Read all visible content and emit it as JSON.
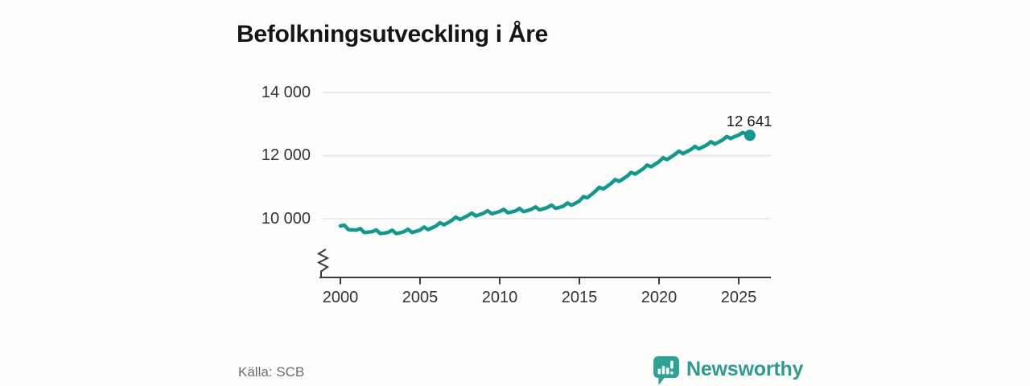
{
  "colors": {
    "accent_teal": "#0f9a8d",
    "brand_teal": "#2d9b8f",
    "grid": "#e3e3e3",
    "axis": "#3a3a3a",
    "title_text": "#151515",
    "muted_text": "#6e6e6e"
  },
  "footer": {
    "source_label": "Källa: SCB",
    "brand_name": "Newsworthy"
  },
  "chart_data": {
    "type": "line",
    "title": "Befolkningsutveckling i Åre",
    "grid": "horizontal",
    "legend": false,
    "line_color": "#0f9a8d",
    "y_axis": {
      "has_axis_break": true,
      "ticks": [
        {
          "value": 14000,
          "label": "14 000"
        },
        {
          "value": 12000,
          "label": "12 000"
        },
        {
          "value": 10000,
          "label": "10 000"
        }
      ]
    },
    "x_axis": {
      "ticks": [
        "2000",
        "2005",
        "2010",
        "2015",
        "2020",
        "2025"
      ]
    },
    "end_point": {
      "x": 2025.7,
      "value": 12641,
      "label": "12 641"
    },
    "series": [
      {
        "points": [
          [
            2000.0,
            9770
          ],
          [
            2000.25,
            9800
          ],
          [
            2000.5,
            9655
          ],
          [
            2000.75,
            9645
          ],
          [
            2001.0,
            9640
          ],
          [
            2001.25,
            9690
          ],
          [
            2001.5,
            9565
          ],
          [
            2001.75,
            9575
          ],
          [
            2002.0,
            9590
          ],
          [
            2002.25,
            9645
          ],
          [
            2002.5,
            9530
          ],
          [
            2002.75,
            9545
          ],
          [
            2003.0,
            9570
          ],
          [
            2003.25,
            9635
          ],
          [
            2003.5,
            9530
          ],
          [
            2003.75,
            9555
          ],
          [
            2004.0,
            9590
          ],
          [
            2004.25,
            9665
          ],
          [
            2004.5,
            9565
          ],
          [
            2004.75,
            9600
          ],
          [
            2005.0,
            9640
          ],
          [
            2005.25,
            9735
          ],
          [
            2005.5,
            9655
          ],
          [
            2005.75,
            9710
          ],
          [
            2006.0,
            9770
          ],
          [
            2006.25,
            9875
          ],
          [
            2006.5,
            9810
          ],
          [
            2006.75,
            9875
          ],
          [
            2007.0,
            9950
          ],
          [
            2007.25,
            10050
          ],
          [
            2007.5,
            9975
          ],
          [
            2007.75,
            10035
          ],
          [
            2008.0,
            10100
          ],
          [
            2008.25,
            10180
          ],
          [
            2008.5,
            10090
          ],
          [
            2008.75,
            10130
          ],
          [
            2009.0,
            10180
          ],
          [
            2009.25,
            10255
          ],
          [
            2009.5,
            10155
          ],
          [
            2009.75,
            10190
          ],
          [
            2010.0,
            10230
          ],
          [
            2010.25,
            10295
          ],
          [
            2010.5,
            10190
          ],
          [
            2010.75,
            10215
          ],
          [
            2011.0,
            10250
          ],
          [
            2011.25,
            10325
          ],
          [
            2011.5,
            10225
          ],
          [
            2011.75,
            10260
          ],
          [
            2012.0,
            10300
          ],
          [
            2012.25,
            10375
          ],
          [
            2012.5,
            10280
          ],
          [
            2012.75,
            10315
          ],
          [
            2013.0,
            10360
          ],
          [
            2013.25,
            10430
          ],
          [
            2013.5,
            10330
          ],
          [
            2013.75,
            10360
          ],
          [
            2014.0,
            10400
          ],
          [
            2014.25,
            10500
          ],
          [
            2014.5,
            10430
          ],
          [
            2014.75,
            10490
          ],
          [
            2015.0,
            10560
          ],
          [
            2015.25,
            10700
          ],
          [
            2015.5,
            10665
          ],
          [
            2015.75,
            10765
          ],
          [
            2016.0,
            10870
          ],
          [
            2016.25,
            10995
          ],
          [
            2016.5,
            10945
          ],
          [
            2016.75,
            11030
          ],
          [
            2017.0,
            11120
          ],
          [
            2017.25,
            11240
          ],
          [
            2017.5,
            11185
          ],
          [
            2017.75,
            11265
          ],
          [
            2018.0,
            11350
          ],
          [
            2018.25,
            11470
          ],
          [
            2018.5,
            11415
          ],
          [
            2018.75,
            11495
          ],
          [
            2019.0,
            11580
          ],
          [
            2019.25,
            11700
          ],
          [
            2019.5,
            11645
          ],
          [
            2019.75,
            11725
          ],
          [
            2020.0,
            11810
          ],
          [
            2020.25,
            11930
          ],
          [
            2020.5,
            11875
          ],
          [
            2020.75,
            11955
          ],
          [
            2021.0,
            12040
          ],
          [
            2021.25,
            12140
          ],
          [
            2021.5,
            12065
          ],
          [
            2021.75,
            12125
          ],
          [
            2022.0,
            12190
          ],
          [
            2022.25,
            12290
          ],
          [
            2022.5,
            12215
          ],
          [
            2022.75,
            12275
          ],
          [
            2023.0,
            12340
          ],
          [
            2023.25,
            12440
          ],
          [
            2023.5,
            12370
          ],
          [
            2023.75,
            12430
          ],
          [
            2024.0,
            12500
          ],
          [
            2024.25,
            12605
          ],
          [
            2024.5,
            12540
          ],
          [
            2024.75,
            12605
          ],
          [
            2025.0,
            12650
          ],
          [
            2025.25,
            12730
          ],
          [
            2025.5,
            12680
          ],
          [
            2025.7,
            12641
          ]
        ]
      }
    ]
  }
}
